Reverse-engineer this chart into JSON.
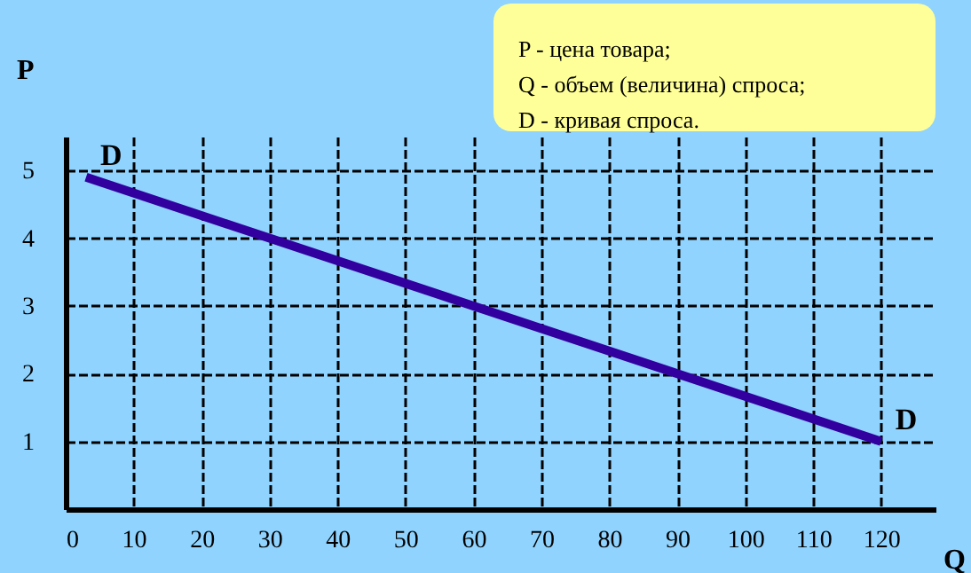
{
  "chart_data": {
    "type": "line",
    "xlabel": "Q",
    "ylabel": "P",
    "x": [
      3,
      30,
      60,
      90,
      120
    ],
    "series": [
      {
        "color": "#3300a0",
        "values": [
          4.9,
          4,
          3,
          2,
          1
        ]
      }
    ],
    "xlim": [
      0,
      128
    ],
    "ylim": [
      0,
      5.5
    ],
    "xticks": [
      0,
      10,
      20,
      30,
      40,
      50,
      60,
      70,
      80,
      90,
      100,
      110,
      120
    ],
    "yticks": [
      1,
      2,
      3,
      4,
      5
    ],
    "grid": true,
    "line_style": "solid",
    "marker": "none",
    "annotations": [
      {
        "text": "D",
        "x": 3,
        "y": 4.9
      },
      {
        "text": "D",
        "x": 120,
        "y": 1
      },
      "P - цена товара;",
      "Q - объем (величина) спроса;",
      "D - кривая спроса."
    ]
  }
}
